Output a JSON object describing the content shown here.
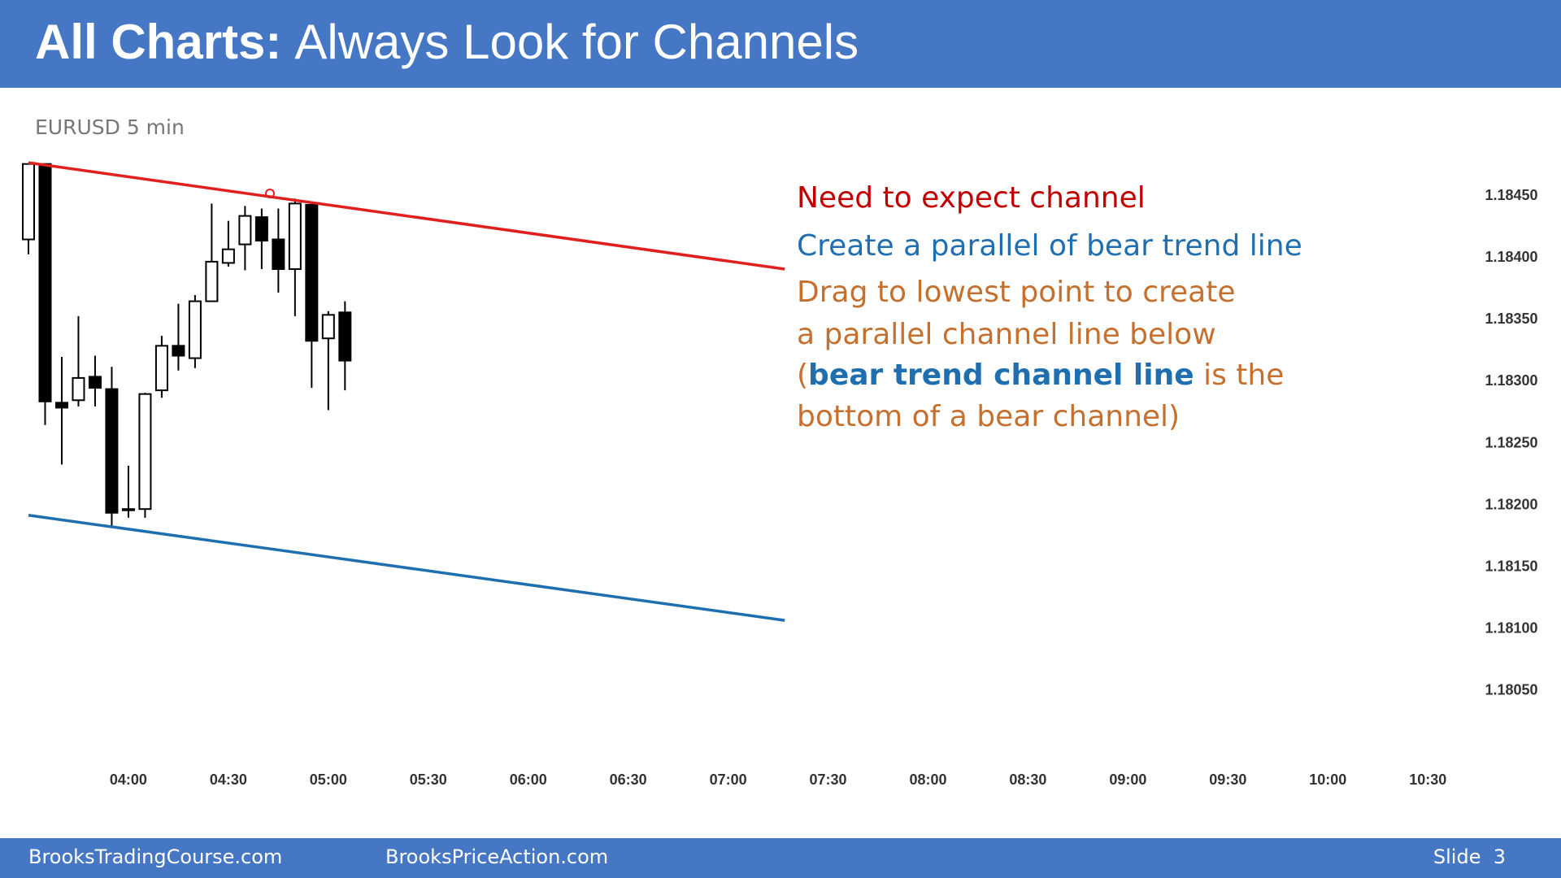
{
  "header": {
    "title_bold": "All Charts:",
    "title_rest": "Always Look for Channels"
  },
  "chart_data": {
    "type": "candlestick",
    "title": "EURUSD 5 min",
    "x": [
      210,
      215,
      220,
      225,
      230,
      235,
      240,
      245,
      250,
      255,
      260,
      265,
      270,
      275,
      280,
      285,
      290,
      295,
      300,
      305
    ],
    "open": [
      1.18415,
      1.18476,
      1.18283,
      1.18285,
      1.18304,
      1.18294,
      1.18197,
      1.18197,
      1.18293,
      1.18329,
      1.18319,
      1.18365,
      1.18396,
      1.18411,
      1.18433,
      1.18415,
      1.18391,
      1.18443,
      1.18335,
      1.18356
    ],
    "high": [
      1.18476,
      1.18476,
      1.1832,
      1.18353,
      1.18321,
      1.18312,
      1.18232,
      1.18291,
      1.18337,
      1.18363,
      1.1837,
      1.18444,
      1.1843,
      1.18442,
      1.1844,
      1.1844,
      1.18448,
      1.18444,
      1.18357,
      1.18365
    ],
    "low": [
      1.18403,
      1.18265,
      1.18233,
      1.1828,
      1.1828,
      1.18183,
      1.1819,
      1.1819,
      1.18287,
      1.18309,
      1.18311,
      1.18365,
      1.18393,
      1.1839,
      1.18391,
      1.18372,
      1.18353,
      1.18295,
      1.18277,
      1.18293
    ],
    "close": [
      1.18476,
      1.18284,
      1.18279,
      1.18303,
      1.18295,
      1.18194,
      1.18196,
      1.1829,
      1.18329,
      1.18321,
      1.18365,
      1.18397,
      1.18407,
      1.18434,
      1.18414,
      1.18391,
      1.18444,
      1.18333,
      1.18354,
      1.18317
    ],
    "up_color": "#ffffff",
    "down_color": "#000000",
    "lines": [
      {
        "color": "#e0201e",
        "x": [
          210,
          437
        ],
        "values": [
          1.18477,
          1.18391
        ]
      },
      {
        "color": "#1f6fb0",
        "x": [
          210,
          437
        ],
        "values": [
          1.18192,
          1.18107
        ]
      }
    ],
    "xlim": [
      208,
      638
    ],
    "ylim": [
      1.1801,
      1.1848
    ],
    "xticks": [
      {
        "value": 240,
        "label": "04:00"
      },
      {
        "value": 270,
        "label": "04:30"
      },
      {
        "value": 300,
        "label": "05:00"
      },
      {
        "value": 330,
        "label": "05:30"
      },
      {
        "value": 360,
        "label": "06:00"
      },
      {
        "value": 390,
        "label": "06:30"
      },
      {
        "value": 420,
        "label": "07:00"
      },
      {
        "value": 450,
        "label": "07:30"
      },
      {
        "value": 480,
        "label": "08:00"
      },
      {
        "value": 510,
        "label": "08:30"
      },
      {
        "value": 540,
        "label": "09:00"
      },
      {
        "value": 570,
        "label": "09:30"
      },
      {
        "value": 600,
        "label": "10:00"
      },
      {
        "value": 630,
        "label": "10:30"
      }
    ],
    "yticks": [
      {
        "value": 1.1845,
        "label": "1.18450"
      },
      {
        "value": 1.184,
        "label": "1.18400"
      },
      {
        "value": 1.1835,
        "label": "1.18350"
      },
      {
        "value": 1.183,
        "label": "1.18300"
      },
      {
        "value": 1.1825,
        "label": "1.18250"
      },
      {
        "value": 1.182,
        "label": "1.18200"
      },
      {
        "value": 1.1815,
        "label": "1.18150"
      },
      {
        "value": 1.181,
        "label": "1.18100"
      },
      {
        "value": 1.1805,
        "label": "1.18050"
      }
    ]
  },
  "annotations": [
    [
      {
        "text": "Need to expect channel",
        "color": "#c00000"
      }
    ],
    [
      {
        "text": "Create a parallel of bear trend line",
        "color": "#1f6fb0"
      }
    ],
    [
      {
        "text": "Drag to lowest point to create",
        "color": "#c5702e"
      }
    ],
    [
      {
        "text": "a parallel channel line below",
        "color": "#c5702e"
      }
    ],
    [
      {
        "text": "(",
        "color": "#c5702e"
      },
      {
        "text": "bear trend channel line",
        "color": "#1f6fb0",
        "bold": true
      },
      {
        "text": " is the",
        "color": "#c5702e"
      }
    ],
    [
      {
        "text": "bottom of a bear channel)",
        "color": "#c5702e"
      }
    ]
  ],
  "footer": {
    "left": "BrooksTradingCourse.com",
    "center": "BrooksPriceAction.com",
    "right": "Slide  3"
  }
}
